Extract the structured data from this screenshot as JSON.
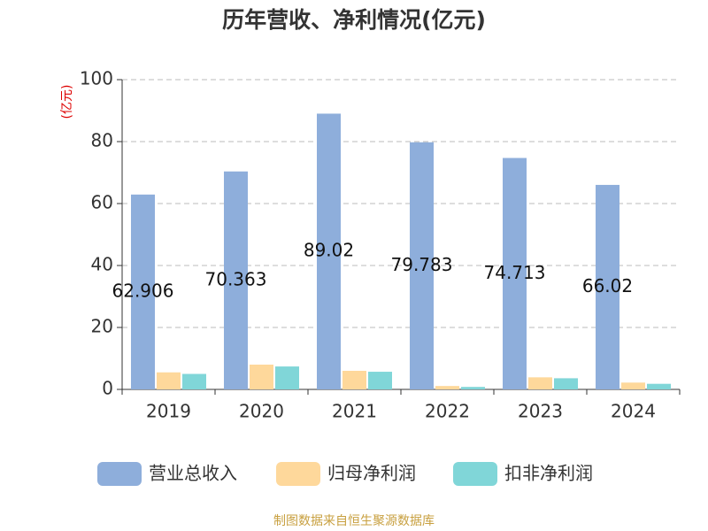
{
  "chart_data": {
    "type": "bar",
    "title": "历年营收、净利情况(亿元)",
    "y_label": "(亿元)",
    "source": "制图数据来自恒生聚源数据库",
    "categories": [
      "2019",
      "2020",
      "2021",
      "2022",
      "2023",
      "2024"
    ],
    "series": [
      {
        "name": "营业总收入",
        "color": "#8eaedb",
        "values": [
          62.906,
          70.363,
          89.02,
          79.783,
          74.713,
          66.02
        ],
        "show_labels": true
      },
      {
        "name": "归母净利润",
        "color": "#fed89b",
        "values": [
          5.5,
          8.0,
          6.0,
          1.1,
          3.9,
          2.2
        ]
      },
      {
        "name": "扣非净利润",
        "color": "#80d6d8",
        "values": [
          5.0,
          7.4,
          5.7,
          0.8,
          3.6,
          1.8
        ]
      }
    ],
    "ylim": [
      0,
      100
    ],
    "yticks": [
      0,
      20,
      40,
      60,
      80,
      100
    ],
    "grid": true
  }
}
